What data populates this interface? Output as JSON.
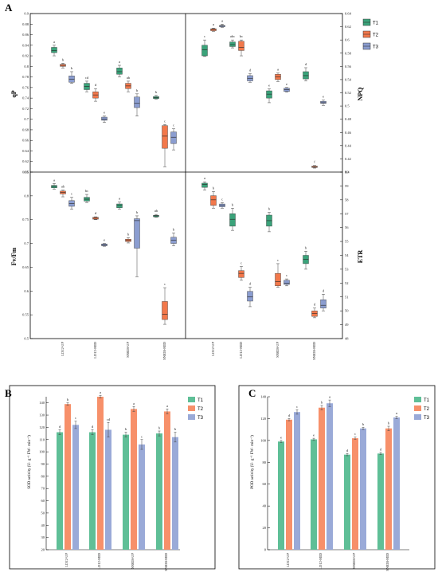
{
  "panels": {
    "A": "A",
    "B": "B",
    "C": "C"
  },
  "groups": [
    "LD12-UP",
    "LD12-MID",
    "SN028-UP",
    "SN028-MID"
  ],
  "legend": [
    "T1",
    "T2",
    "T3"
  ],
  "colors": {
    "T1": "#3aa37a",
    "T2": "#f2784b",
    "T3": "#8b9dd0",
    "T1_bar": "#5fbf97",
    "T2_bar": "#f7906a",
    "T3_bar": "#9aaad8"
  },
  "chart_data": [
    {
      "type": "box",
      "id": "qP",
      "ylabel": "qP",
      "ylim": [
        0.6,
        0.9
      ],
      "yticks": [
        "0.6",
        "0.62",
        "0.64",
        "0.66",
        "0.68",
        "0.7",
        "0.72",
        "0.74",
        "0.76",
        "0.78",
        "0.8",
        "0.82",
        "0.84",
        "0.86",
        "0.88",
        "0.9"
      ],
      "series": [
        {
          "name": "T1",
          "boxes": [
            {
              "min": 0.82,
              "q1": 0.826,
              "med": 0.83,
              "q3": 0.836,
              "max": 0.84,
              "sig": "a"
            },
            {
              "min": 0.752,
              "q1": 0.756,
              "med": 0.762,
              "q3": 0.768,
              "max": 0.772,
              "sig": "cd"
            },
            {
              "min": 0.78,
              "q1": 0.785,
              "med": 0.79,
              "q3": 0.797,
              "max": 0.802,
              "sig": "a"
            },
            {
              "min": 0.738,
              "q1": 0.739,
              "med": 0.741,
              "q3": 0.743,
              "max": 0.745,
              "sig": "b"
            }
          ]
        },
        {
          "name": "T2",
          "boxes": [
            {
              "min": 0.797,
              "q1": 0.8,
              "med": 0.802,
              "q3": 0.804,
              "max": 0.806,
              "sig": "b"
            },
            {
              "min": 0.734,
              "q1": 0.74,
              "med": 0.746,
              "q3": 0.752,
              "max": 0.758,
              "sig": "d"
            },
            {
              "min": 0.752,
              "q1": 0.758,
              "med": 0.763,
              "q3": 0.768,
              "max": 0.772,
              "sig": "ab"
            },
            {
              "min": 0.61,
              "q1": 0.645,
              "med": 0.668,
              "q3": 0.688,
              "max": 0.69,
              "sig": "c"
            }
          ]
        },
        {
          "name": "T3",
          "boxes": [
            {
              "min": 0.768,
              "q1": 0.77,
              "med": 0.776,
              "q3": 0.782,
              "max": 0.79,
              "sig": "b"
            },
            {
              "min": 0.694,
              "q1": 0.698,
              "med": 0.7,
              "q3": 0.704,
              "max": 0.706,
              "sig": "e"
            },
            {
              "min": 0.706,
              "q1": 0.722,
              "med": 0.73,
              "q3": 0.742,
              "max": 0.748,
              "sig": "b"
            },
            {
              "min": 0.642,
              "q1": 0.654,
              "med": 0.666,
              "q3": 0.676,
              "max": 0.682,
              "sig": "c"
            }
          ]
        }
      ]
    },
    {
      "type": "box",
      "id": "NPQ",
      "ylabel": "NPQ",
      "ylim": [
        0.4,
        0.64
      ],
      "yticks": [
        "0.4",
        "0.42",
        "0.44",
        "0.46",
        "0.48",
        "0.5",
        "0.52",
        "0.54",
        "0.56",
        "0.58",
        "0.6",
        "0.62",
        "0.64"
      ],
      "series": [
        {
          "name": "T1",
          "boxes": [
            {
              "min": 0.575,
              "q1": 0.576,
              "med": 0.585,
              "q3": 0.592,
              "max": 0.6,
              "sig": "c"
            },
            {
              "min": 0.588,
              "q1": 0.59,
              "med": 0.593,
              "q3": 0.597,
              "max": 0.6,
              "sig": "abc"
            },
            {
              "min": 0.505,
              "q1": 0.512,
              "med": 0.518,
              "q3": 0.523,
              "max": 0.526,
              "sig": "e"
            },
            {
              "min": 0.538,
              "q1": 0.541,
              "med": 0.546,
              "q3": 0.552,
              "max": 0.558,
              "sig": "d"
            }
          ]
        },
        {
          "name": "T2",
          "boxes": [
            {
              "min": 0.613,
              "q1": 0.614,
              "med": 0.616,
              "q3": 0.617,
              "max": 0.618,
              "sig": "a"
            },
            {
              "min": 0.576,
              "q1": 0.584,
              "med": 0.589,
              "q3": 0.598,
              "max": 0.6,
              "sig": "bc"
            },
            {
              "min": 0.537,
              "q1": 0.54,
              "med": 0.544,
              "q3": 0.548,
              "max": 0.55,
              "sig": "a"
            },
            {
              "min": 0.406,
              "q1": 0.407,
              "med": 0.408,
              "q3": 0.409,
              "max": 0.41,
              "sig": "f"
            }
          ]
        },
        {
          "name": "T3",
          "boxes": [
            {
              "min": 0.619,
              "q1": 0.62,
              "med": 0.621,
              "q3": 0.622,
              "max": 0.624,
              "sig": "a"
            },
            {
              "min": 0.536,
              "q1": 0.538,
              "med": 0.542,
              "q3": 0.546,
              "max": 0.549,
              "sig": "d"
            },
            {
              "min": 0.521,
              "q1": 0.522,
              "med": 0.525,
              "q3": 0.527,
              "max": 0.528,
              "sig": "e"
            },
            {
              "min": 0.501,
              "q1": 0.504,
              "med": 0.505,
              "q3": 0.507,
              "max": 0.509,
              "sig": "e"
            }
          ]
        }
      ]
    },
    {
      "type": "box",
      "id": "FvFm",
      "ylabel": "Fv/Fm",
      "ylim": [
        0.5,
        0.85
      ],
      "yticks": [
        "0.5",
        "0.55",
        "0.6",
        "0.65",
        "0.7",
        "0.75",
        "0.8",
        "0.85"
      ],
      "series": [
        {
          "name": "T1",
          "boxes": [
            {
              "min": 0.814,
              "q1": 0.817,
              "med": 0.82,
              "q3": 0.822,
              "max": 0.826,
              "sig": "a"
            },
            {
              "min": 0.786,
              "q1": 0.789,
              "med": 0.793,
              "q3": 0.797,
              "max": 0.803,
              "sig": "bc"
            },
            {
              "min": 0.772,
              "q1": 0.775,
              "med": 0.78,
              "q3": 0.783,
              "max": 0.787,
              "sig": "a"
            },
            {
              "min": 0.755,
              "q1": 0.756,
              "med": 0.758,
              "q3": 0.759,
              "max": 0.761,
              "sig": "ab"
            }
          ]
        },
        {
          "name": "T2",
          "boxes": [
            {
              "min": 0.798,
              "q1": 0.804,
              "med": 0.807,
              "q3": 0.81,
              "max": 0.812,
              "sig": "ab"
            },
            {
              "min": 0.75,
              "q1": 0.751,
              "med": 0.753,
              "q3": 0.755,
              "max": 0.756,
              "sig": "d"
            },
            {
              "min": 0.701,
              "q1": 0.704,
              "med": 0.707,
              "q3": 0.709,
              "max": 0.712,
              "sig": "b"
            },
            {
              "min": 0.53,
              "q1": 0.54,
              "med": 0.551,
              "q3": 0.578,
              "max": 0.607,
              "sig": "c"
            }
          ]
        },
        {
          "name": "T3",
          "boxes": [
            {
              "min": 0.772,
              "q1": 0.778,
              "med": 0.784,
              "q3": 0.79,
              "max": 0.797,
              "sig": "c"
            },
            {
              "min": 0.694,
              "q1": 0.695,
              "med": 0.697,
              "q3": 0.699,
              "max": 0.7,
              "sig": "e"
            },
            {
              "min": 0.63,
              "q1": 0.69,
              "med": 0.748,
              "q3": 0.752,
              "max": 0.758,
              "sig": "b"
            },
            {
              "min": 0.695,
              "q1": 0.7,
              "med": 0.707,
              "q3": 0.713,
              "max": 0.722,
              "sig": "b"
            }
          ]
        }
      ]
    },
    {
      "type": "box",
      "id": "ETR",
      "ylabel": "ETR",
      "ylim": [
        48,
        60
      ],
      "yticks": [
        "48",
        "49",
        "50",
        "51",
        "52",
        "53",
        "54",
        "55",
        "56",
        "57",
        "58",
        "59",
        "60"
      ],
      "series": [
        {
          "name": "T1",
          "boxes": [
            {
              "min": 58.7,
              "q1": 58.9,
              "med": 59.1,
              "q3": 59.2,
              "max": 59.3,
              "sig": "a"
            },
            {
              "min": 55.8,
              "q1": 56.1,
              "med": 56.6,
              "q3": 57.0,
              "max": 57.4,
              "sig": "b"
            },
            {
              "min": 55.7,
              "q1": 56.1,
              "med": 56.5,
              "q3": 56.9,
              "max": 57.1,
              "sig": "b"
            },
            {
              "min": 53.0,
              "q1": 53.4,
              "med": 53.7,
              "q3": 54.0,
              "max": 54.3,
              "sig": "b"
            }
          ]
        },
        {
          "name": "T2",
          "boxes": [
            {
              "min": 57.4,
              "q1": 57.6,
              "med": 58.0,
              "q3": 58.3,
              "max": 58.6,
              "sig": "b"
            },
            {
              "min": 52.2,
              "q1": 52.4,
              "med": 52.7,
              "q3": 52.9,
              "max": 53.2,
              "sig": "c"
            },
            {
              "min": 51.7,
              "q1": 51.8,
              "med": 52.1,
              "q3": 52.7,
              "max": 53.4,
              "sig": "c"
            },
            {
              "min": 49.5,
              "q1": 49.6,
              "med": 49.8,
              "q3": 50.0,
              "max": 50.2,
              "sig": "d"
            }
          ]
        },
        {
          "name": "T3",
          "boxes": [
            {
              "min": 57.4,
              "q1": 57.5,
              "med": 57.6,
              "q3": 57.7,
              "max": 57.8,
              "sig": "c"
            },
            {
              "min": 50.3,
              "q1": 50.7,
              "med": 51.0,
              "q3": 51.4,
              "max": 51.7,
              "sig": "d"
            },
            {
              "min": 51.8,
              "q1": 51.9,
              "med": 52.0,
              "q3": 52.2,
              "max": 52.3,
              "sig": "c"
            },
            {
              "min": 50.0,
              "q1": 50.2,
              "med": 50.4,
              "q3": 50.8,
              "max": 51.2,
              "sig": "d"
            }
          ]
        }
      ]
    },
    {
      "type": "bar",
      "id": "SOD",
      "ylabel": "SOD activity (U· g⁻¹ FW· min⁻¹)",
      "ylim": [
        20,
        145
      ],
      "yticks": [
        "20",
        "30",
        "40",
        "50",
        "60",
        "70",
        "80",
        "90",
        "100",
        "110",
        "120",
        "130",
        "140"
      ],
      "series": [
        {
          "name": "T1",
          "values": [
            116,
            116,
            114,
            115
          ],
          "errors": [
            2,
            2,
            2,
            2
          ],
          "sig": [
            "d",
            "d",
            "b",
            "b"
          ]
        },
        {
          "name": "T2",
          "values": [
            139,
            145,
            135,
            133
          ],
          "errors": [
            1,
            1,
            2,
            2
          ],
          "sig": [
            "b",
            "a",
            "a",
            "a"
          ]
        },
        {
          "name": "T3",
          "values": [
            122,
            118,
            106,
            112
          ],
          "errors": [
            3,
            6,
            4,
            4
          ],
          "sig": [
            "c",
            "cd",
            "c",
            "b"
          ]
        }
      ]
    },
    {
      "type": "bar",
      "id": "POD",
      "ylabel": "POD activity (U· g⁻¹ FW· min⁻¹)",
      "ylim": [
        0,
        140
      ],
      "yticks": [
        "0",
        "20",
        "40",
        "60",
        "80",
        "100",
        "120",
        "140"
      ],
      "series": [
        {
          "name": "T1",
          "values": [
            99,
            101,
            87,
            88
          ],
          "errors": [
            1,
            1,
            1,
            1
          ],
          "sig": [
            "e",
            "e",
            "d",
            "d"
          ]
        },
        {
          "name": "T2",
          "values": [
            119,
            130,
            102,
            111
          ],
          "errors": [
            1,
            2,
            1,
            2
          ],
          "sig": [
            "d",
            "b",
            "c",
            "b"
          ]
        },
        {
          "name": "T3",
          "values": [
            126,
            134,
            111,
            121
          ],
          "errors": [
            2,
            3,
            1,
            1
          ],
          "sig": [
            "c",
            "a",
            "b",
            "a"
          ]
        }
      ]
    }
  ]
}
